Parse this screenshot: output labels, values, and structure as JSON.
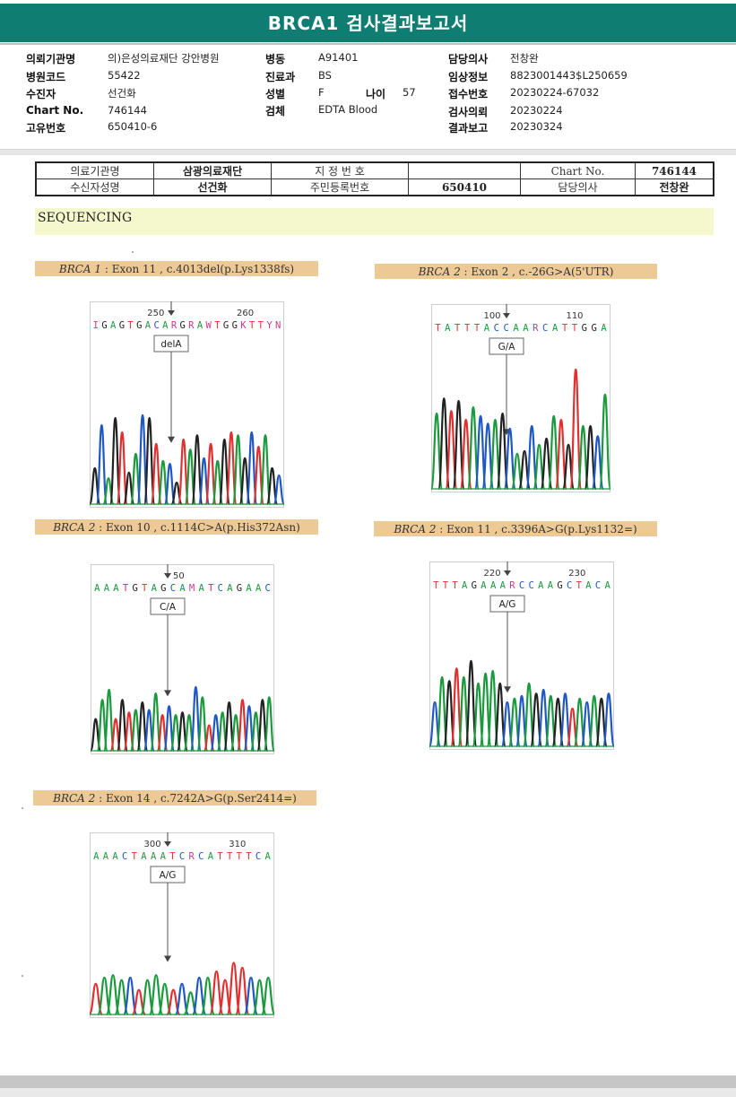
{
  "title": "BRCA1 검사결과보고서",
  "header": {
    "col1": [
      {
        "label": "의뢰기관명",
        "value": "의)은성의료재단 강안병원"
      },
      {
        "label": "병원코드",
        "value": "55422"
      },
      {
        "label": "수진자",
        "value": "선건화"
      },
      {
        "label": "Chart No.",
        "value": "746144"
      },
      {
        "label": "고유번호",
        "value": "650410-6"
      }
    ],
    "col2": [
      {
        "label": "병동",
        "value": "A91401"
      },
      {
        "label": "진료과",
        "value": "BS"
      },
      {
        "label": "성별",
        "value": "F"
      },
      {
        "label": "검체",
        "value": "EDTA Blood"
      }
    ],
    "age": {
      "label": "나이",
      "value": "57"
    },
    "col3": [
      {
        "label": "담당의사",
        "value": "전창완"
      },
      {
        "label": "임상정보",
        "value": "8823001443$L250659"
      },
      {
        "label": "접수번호",
        "value": "20230224-67032"
      },
      {
        "label": "검사의뢰",
        "value": "20230224"
      },
      {
        "label": "결과보고",
        "value": "20230324"
      }
    ]
  },
  "info_table": {
    "row1": [
      "의료기관명",
      "삼광의료재단",
      "지 정 번 호",
      "",
      "Chart No.",
      "746144"
    ],
    "row2": [
      "수신자성명",
      "선건화",
      "주민등록번호",
      "650410",
      "담당의사",
      "전창완"
    ]
  },
  "section": "SEQUENCING",
  "chromatograms": [
    {
      "id": "c1",
      "gene": "BRCA 1",
      "desc": " : Exon 11 , c.4013del(p.Lys1338fs)",
      "ticks": [
        "250",
        "260"
      ],
      "sequence": "IGAGTGACARGRAWTGGKTTYN",
      "callout": "delA",
      "peaks": [
        {
          "b": "G",
          "h": 0.25
        },
        {
          "b": "C",
          "h": 0.55
        },
        {
          "b": "A",
          "h": 0.18
        },
        {
          "b": "G",
          "h": 0.6
        },
        {
          "b": "T",
          "h": 0.5
        },
        {
          "b": "G",
          "h": 0.22
        },
        {
          "b": "A",
          "h": 0.35
        },
        {
          "b": "C",
          "h": 0.62
        },
        {
          "b": "G",
          "h": 0.6
        },
        {
          "b": "T",
          "h": 0.42
        },
        {
          "b": "A",
          "h": 0.3
        },
        {
          "b": "C",
          "h": 0.28
        },
        {
          "b": "G",
          "h": 0.15
        },
        {
          "b": "T",
          "h": 0.45
        },
        {
          "b": "A",
          "h": 0.38
        },
        {
          "b": "G",
          "h": 0.48
        },
        {
          "b": "C",
          "h": 0.32
        },
        {
          "b": "T",
          "h": 0.42
        },
        {
          "b": "A",
          "h": 0.3
        },
        {
          "b": "G",
          "h": 0.45
        },
        {
          "b": "T",
          "h": 0.5
        },
        {
          "b": "A",
          "h": 0.48
        },
        {
          "b": "G",
          "h": 0.32
        },
        {
          "b": "C",
          "h": 0.5
        },
        {
          "b": "T",
          "h": 0.4
        },
        {
          "b": "A",
          "h": 0.48
        },
        {
          "b": "G",
          "h": 0.25
        },
        {
          "b": "C",
          "h": 0.2
        }
      ]
    },
    {
      "id": "c2",
      "gene": "BRCA 2",
      "desc": " : Exon 2 , c.-26G>A(5'UTR)",
      "ticks": [
        "100",
        "110"
      ],
      "sequence": "TATTTACCAARCATTGGA",
      "callout": "G/A",
      "peaks": [
        {
          "b": "A",
          "h": 0.6
        },
        {
          "b": "G",
          "h": 0.72
        },
        {
          "b": "T",
          "h": 0.62
        },
        {
          "b": "G",
          "h": 0.7
        },
        {
          "b": "T",
          "h": 0.55
        },
        {
          "b": "A",
          "h": 0.65
        },
        {
          "b": "C",
          "h": 0.58
        },
        {
          "b": "C",
          "h": 0.52
        },
        {
          "b": "A",
          "h": 0.55
        },
        {
          "b": "G",
          "h": 0.6
        },
        {
          "b": "C",
          "h": 0.48
        },
        {
          "b": "A",
          "h": 0.28
        },
        {
          "b": "G",
          "h": 0.3
        },
        {
          "b": "C",
          "h": 0.5
        },
        {
          "b": "A",
          "h": 0.35
        },
        {
          "b": "G",
          "h": 0.4
        },
        {
          "b": "A",
          "h": 0.58
        },
        {
          "b": "T",
          "h": 0.55
        },
        {
          "b": "G",
          "h": 0.35
        },
        {
          "b": "T",
          "h": 0.95
        },
        {
          "b": "A",
          "h": 0.5
        },
        {
          "b": "G",
          "h": 0.5
        },
        {
          "b": "C",
          "h": 0.42
        },
        {
          "b": "A",
          "h": 0.75
        }
      ]
    },
    {
      "id": "c3",
      "gene": "BRCA 2",
      "desc": " : Exon 10 , c.1114C>A(p.His372Asn)",
      "ticks": [
        "50"
      ],
      "sequence": "AAATGTAGCAMATCAGAAC",
      "callout": "C/A",
      "peaks": [
        {
          "b": "G",
          "h": 0.25
        },
        {
          "b": "A",
          "h": 0.4
        },
        {
          "b": "A",
          "h": 0.48
        },
        {
          "b": "T",
          "h": 0.25
        },
        {
          "b": "G",
          "h": 0.4
        },
        {
          "b": "T",
          "h": 0.3
        },
        {
          "b": "A",
          "h": 0.32
        },
        {
          "b": "G",
          "h": 0.38
        },
        {
          "b": "C",
          "h": 0.32
        },
        {
          "b": "A",
          "h": 0.45
        },
        {
          "b": "T",
          "h": 0.28
        },
        {
          "b": "C",
          "h": 0.35
        },
        {
          "b": "A",
          "h": 0.28
        },
        {
          "b": "G",
          "h": 0.3
        },
        {
          "b": "A",
          "h": 0.28
        },
        {
          "b": "C",
          "h": 0.5
        },
        {
          "b": "A",
          "h": 0.42
        },
        {
          "b": "T",
          "h": 0.2
        },
        {
          "b": "C",
          "h": 0.28
        },
        {
          "b": "A",
          "h": 0.3
        },
        {
          "b": "G",
          "h": 0.38
        },
        {
          "b": "A",
          "h": 0.28
        },
        {
          "b": "T",
          "h": 0.4
        },
        {
          "b": "C",
          "h": 0.35
        },
        {
          "b": "A",
          "h": 0.3
        },
        {
          "b": "G",
          "h": 0.4
        },
        {
          "b": "A",
          "h": 0.42
        }
      ]
    },
    {
      "id": "c4",
      "gene": "BRCA 2",
      "desc": " : Exon 11 , c.3396A>G(p.Lys1132=)",
      "ticks": [
        "220",
        "230"
      ],
      "sequence": "TTTAGAAARCCAAGCTACA",
      "callout": "A/G",
      "peaks": [
        {
          "b": "C",
          "h": 0.35
        },
        {
          "b": "A",
          "h": 0.55
        },
        {
          "b": "G",
          "h": 0.52
        },
        {
          "b": "T",
          "h": 0.62
        },
        {
          "b": "A",
          "h": 0.55
        },
        {
          "b": "G",
          "h": 0.68
        },
        {
          "b": "A",
          "h": 0.5
        },
        {
          "b": "A",
          "h": 0.58
        },
        {
          "b": "A",
          "h": 0.6
        },
        {
          "b": "G",
          "h": 0.5
        },
        {
          "b": "C",
          "h": 0.35
        },
        {
          "b": "A",
          "h": 0.38
        },
        {
          "b": "C",
          "h": 0.4
        },
        {
          "b": "A",
          "h": 0.5
        },
        {
          "b": "G",
          "h": 0.42
        },
        {
          "b": "C",
          "h": 0.45
        },
        {
          "b": "A",
          "h": 0.4
        },
        {
          "b": "G",
          "h": 0.38
        },
        {
          "b": "C",
          "h": 0.42
        },
        {
          "b": "T",
          "h": 0.3
        },
        {
          "b": "A",
          "h": 0.38
        },
        {
          "b": "C",
          "h": 0.35
        },
        {
          "b": "A",
          "h": 0.4
        },
        {
          "b": "G",
          "h": 0.38
        },
        {
          "b": "C",
          "h": 0.42
        }
      ]
    },
    {
      "id": "c5",
      "gene": "BRCA 2",
      "desc": " : Exon 14 , c.7242A>G(p.Ser2414=)",
      "ticks": [
        "300",
        "310"
      ],
      "sequence": "AAACTAAATCRCATTTTCA",
      "callout": "A/G",
      "peaks": [
        {
          "b": "T",
          "h": 0.25
        },
        {
          "b": "A",
          "h": 0.3
        },
        {
          "b": "A",
          "h": 0.32
        },
        {
          "b": "A",
          "h": 0.28
        },
        {
          "b": "C",
          "h": 0.3
        },
        {
          "b": "T",
          "h": 0.2
        },
        {
          "b": "A",
          "h": 0.28
        },
        {
          "b": "A",
          "h": 0.32
        },
        {
          "b": "A",
          "h": 0.25
        },
        {
          "b": "T",
          "h": 0.2
        },
        {
          "b": "C",
          "h": 0.25
        },
        {
          "b": "A",
          "h": 0.18
        },
        {
          "b": "C",
          "h": 0.3
        },
        {
          "b": "A",
          "h": 0.3
        },
        {
          "b": "T",
          "h": 0.35
        },
        {
          "b": "T",
          "h": 0.28
        },
        {
          "b": "T",
          "h": 0.42
        },
        {
          "b": "T",
          "h": 0.38
        },
        {
          "b": "C",
          "h": 0.3
        },
        {
          "b": "A",
          "h": 0.28
        },
        {
          "b": "A",
          "h": 0.3
        }
      ]
    }
  ],
  "colors": {
    "header_bg": "#0f7d72",
    "banner": "#f5f8cd",
    "label_bg": "#edc996",
    "A": "#1a9a3c",
    "C": "#1f57c4",
    "G": "#222222",
    "T": "#e03030"
  }
}
